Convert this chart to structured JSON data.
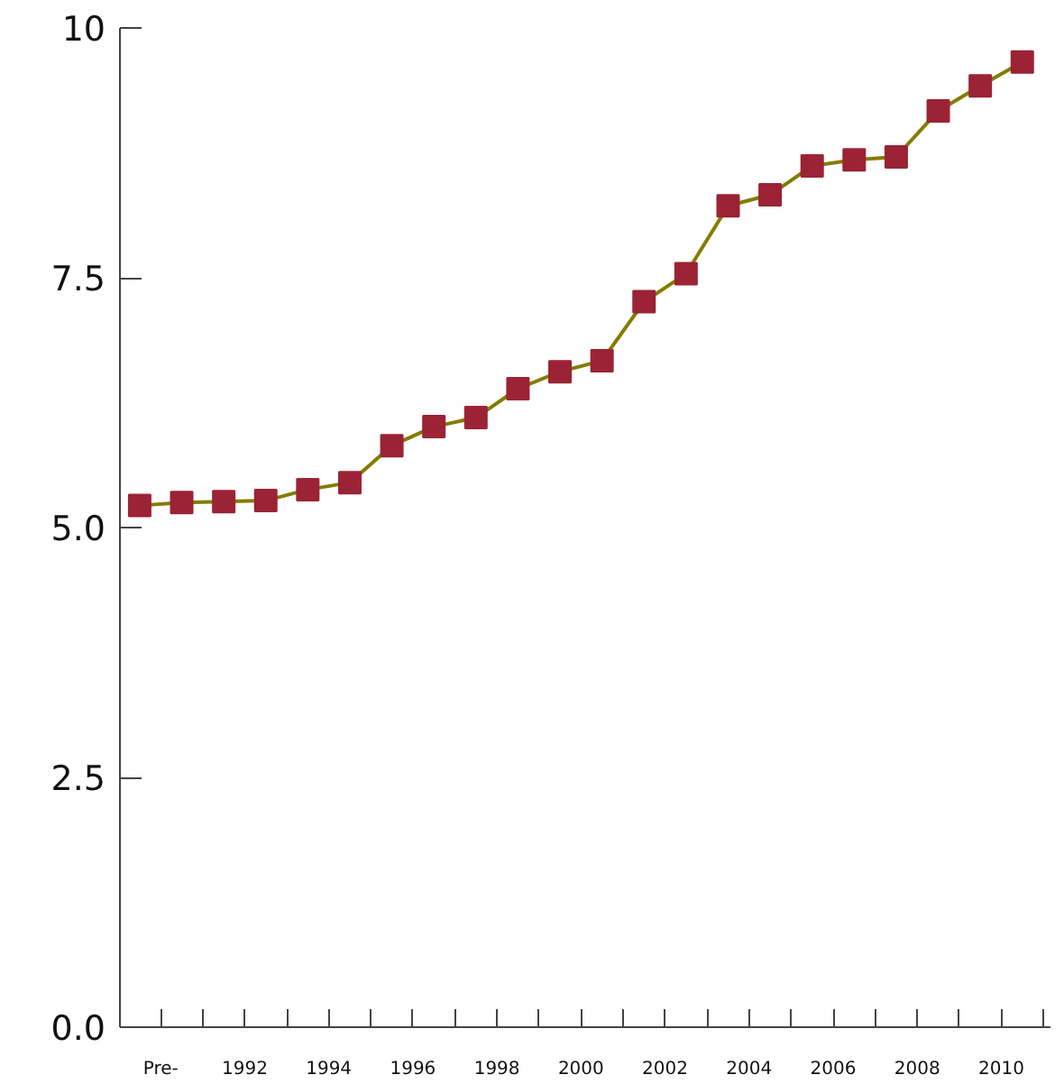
{
  "chart_data": {
    "type": "line",
    "x": [
      1989.5,
      1990.5,
      1991.5,
      1992.5,
      1993.5,
      1994.5,
      1995.5,
      1996.5,
      1997.5,
      1998.5,
      1999.5,
      2000.5,
      2001.5,
      2002.5,
      2003.5,
      2004.5,
      2005.5,
      2006.5,
      2007.5,
      2008.5,
      2009.5,
      2010.5
    ],
    "xlim": [
      1989.03,
      2011.17
    ],
    "xticks": [
      {
        "value": 1990,
        "label": "Pre-"
      },
      {
        "value": 1991,
        "label": null
      },
      1992,
      {
        "value": 1993,
        "label": null
      },
      1994,
      {
        "value": 1995,
        "label": null
      },
      1996,
      {
        "value": 1997,
        "label": null
      },
      1998,
      {
        "value": 1999,
        "label": null
      },
      2000,
      {
        "value": 2001,
        "label": null
      },
      2002,
      {
        "value": 2003,
        "label": null
      },
      2004,
      {
        "value": 2005,
        "label": null
      },
      2006,
      {
        "value": 2007,
        "label": null
      },
      2008,
      {
        "value": 2009,
        "label": null
      },
      2010,
      {
        "value": 2011,
        "label": null
      }
    ],
    "series": [
      {
        "color": "#847c00",
        "values": [
          5.22,
          5.25,
          5.26,
          5.27,
          5.38,
          5.45,
          5.82,
          6.01,
          6.1,
          6.39,
          6.56,
          6.67,
          7.26,
          7.54,
          8.22,
          8.33,
          8.62,
          8.68,
          8.71,
          9.17,
          9.42,
          9.66
        ]
      },
      {
        "type": "scatter",
        "marker": "square",
        "color": "#9b2335",
        "values": [
          5.22,
          5.25,
          5.26,
          5.27,
          5.38,
          5.45,
          5.82,
          6.01,
          6.1,
          6.39,
          6.56,
          6.67,
          7.26,
          7.54,
          8.22,
          8.33,
          8.62,
          8.68,
          8.71,
          9.17,
          9.42,
          9.66
        ]
      }
    ],
    "ylim": [
      0,
      10
    ],
    "yticks": [
      {
        "value": 0,
        "label": "0.0"
      },
      2.5,
      {
        "value": 5,
        "label": "5.0"
      },
      7.5,
      10
    ],
    "grid": false,
    "line_style": "solid"
  }
}
